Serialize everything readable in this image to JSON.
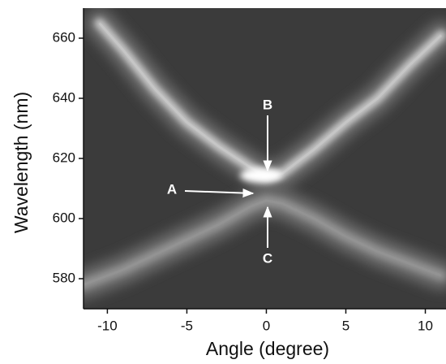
{
  "chart_data": {
    "type": "line",
    "x_label": "Angle (degree)",
    "y_label": "Wavelength (nm)",
    "xlim": [
      -11.5,
      11.3
    ],
    "ylim": [
      570,
      670
    ],
    "xticks": [
      -10,
      -5,
      0,
      5,
      10
    ],
    "yticks": [
      580,
      600,
      620,
      640,
      660
    ],
    "background": "#3b3b3b",
    "series": [
      {
        "color": "#d8d8d8",
        "x": [
          -10.5,
          -9,
          -7,
          -5,
          -3,
          -1,
          0,
          1,
          3,
          5,
          7,
          9,
          11
        ],
        "values": [
          665,
          656,
          643,
          632,
          624,
          617,
          614,
          615,
          623,
          632,
          640,
          651,
          661
        ]
      },
      {
        "color": "#9a9a9a",
        "x": [
          -11.5,
          -9,
          -7,
          -5,
          -3,
          -1,
          0,
          1,
          3,
          5,
          7,
          9,
          11
        ],
        "values": [
          578,
          583,
          588,
          593,
          598,
          604,
          606,
          605,
          600,
          594,
          589,
          585,
          581
        ]
      }
    ],
    "annotations": [
      "A",
      "B",
      "C"
    ]
  }
}
